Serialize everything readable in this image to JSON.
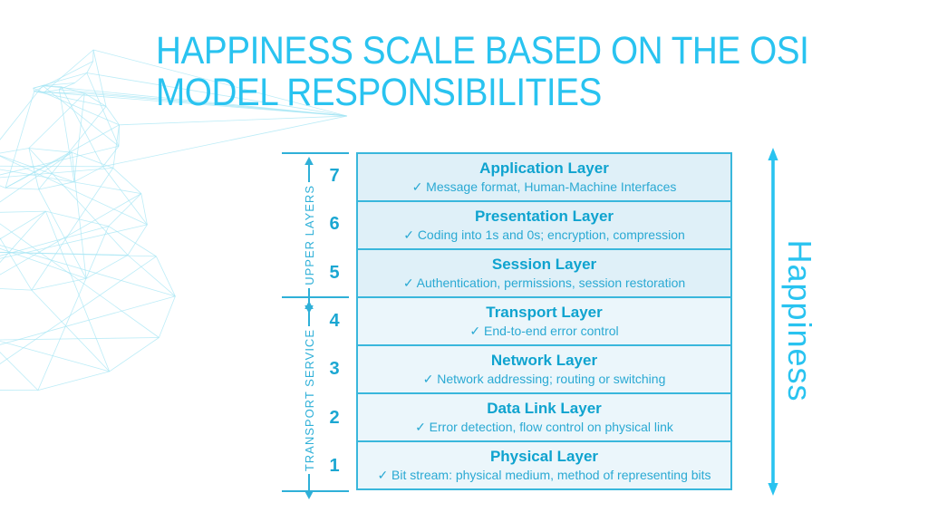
{
  "slide": {
    "title_line1": "HAPPINESS SCALE BASED ON THE OSI",
    "title_line2": "MODEL RESPONSIBILITIES"
  },
  "colors": {
    "accent_bright": "#29C3F0",
    "accent_teal": "#1BA7D2",
    "heading_text": "#0FA3CF",
    "body_text": "#2AA9D3",
    "table_border": "#39B7DC",
    "row_bg_upper": "#DFF0F8",
    "row_bg_lower": "#EBF6FB",
    "scale_color": "#2FB0D8",
    "decor_line": "#A5E6F4"
  },
  "scale": {
    "upper_label": "UPPER LAYERS",
    "lower_label": "TRANSPORT SERVICE"
  },
  "happiness_axis": {
    "label": "Happiness"
  },
  "osi_table": {
    "layers": [
      {
        "num": "7",
        "title": "Application Layer",
        "desc": "✓ Message format, Human-Machine Interfaces",
        "group": "upper"
      },
      {
        "num": "6",
        "title": "Presentation Layer",
        "desc": "✓ Coding into 1s and 0s; encryption, compression",
        "group": "upper"
      },
      {
        "num": "5",
        "title": "Session Layer",
        "desc": "✓ Authentication, permissions, session restoration",
        "group": "upper"
      },
      {
        "num": "4",
        "title": "Transport Layer",
        "desc": "✓ End-to-end error control",
        "group": "lower"
      },
      {
        "num": "3",
        "title": "Network Layer",
        "desc": "✓ Network addressing; routing or switching",
        "group": "lower"
      },
      {
        "num": "2",
        "title": "Data Link Layer",
        "desc": "✓ Error detection, flow control on physical link",
        "group": "lower"
      },
      {
        "num": "1",
        "title": "Physical Layer",
        "desc": "✓ Bit stream: physical medium, method of representing bits",
        "group": "lower"
      }
    ]
  }
}
